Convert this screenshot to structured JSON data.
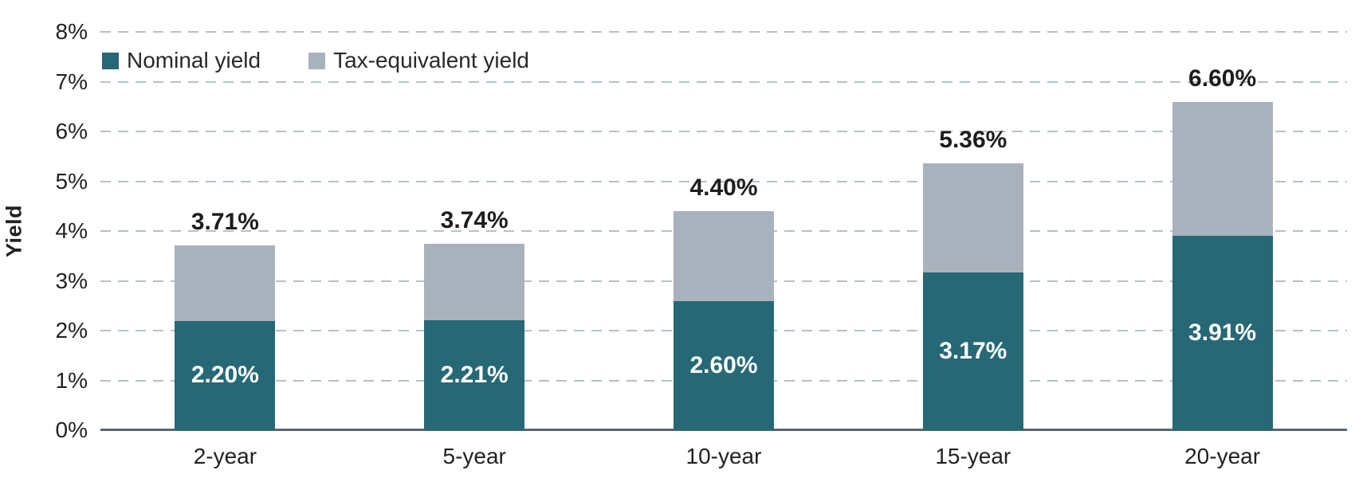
{
  "legend": {
    "items": [
      {
        "label": "Nominal yield",
        "color": "#266876"
      },
      {
        "label": "Tax-equivalent yield",
        "color": "#a9b2bc"
      }
    ],
    "position": "top-left"
  },
  "chart_data": {
    "type": "bar",
    "stacked": true,
    "title": "",
    "xlabel": "",
    "ylabel": "Yield",
    "categories": [
      "2-year",
      "5-year",
      "10-year",
      "15-year",
      "20-year"
    ],
    "series": [
      {
        "name": "Nominal yield",
        "color": "#266876",
        "values": [
          2.2,
          2.21,
          2.6,
          3.17,
          3.91
        ]
      },
      {
        "name": "Tax-equivalent yield",
        "color": "#a9b2bc",
        "values": [
          1.51,
          1.53,
          1.8,
          2.19,
          2.69
        ]
      }
    ],
    "totals": [
      3.71,
      3.74,
      4.4,
      5.36,
      6.6
    ],
    "total_labels": [
      "3.71%",
      "3.74%",
      "4.40%",
      "5.36%",
      "6.60%"
    ],
    "nominal_labels": [
      "2.20%",
      "2.21%",
      "2.60%",
      "3.17%",
      "3.91%"
    ],
    "ylim": [
      0,
      8
    ],
    "ytick_step": 1,
    "ytick_labels": [
      "0%",
      "1%",
      "2%",
      "3%",
      "4%",
      "5%",
      "6%",
      "7%",
      "8%"
    ],
    "grid": "dashed-horizontal",
    "legend_position": "top-left"
  },
  "colors": {
    "nominal": "#266876",
    "tax_equivalent": "#a9b2bc",
    "axis_line": "#566672",
    "gridline": "#b7c0c8",
    "text": "#232122",
    "inbar_text": "#ffffff",
    "background": "#ffffff"
  }
}
